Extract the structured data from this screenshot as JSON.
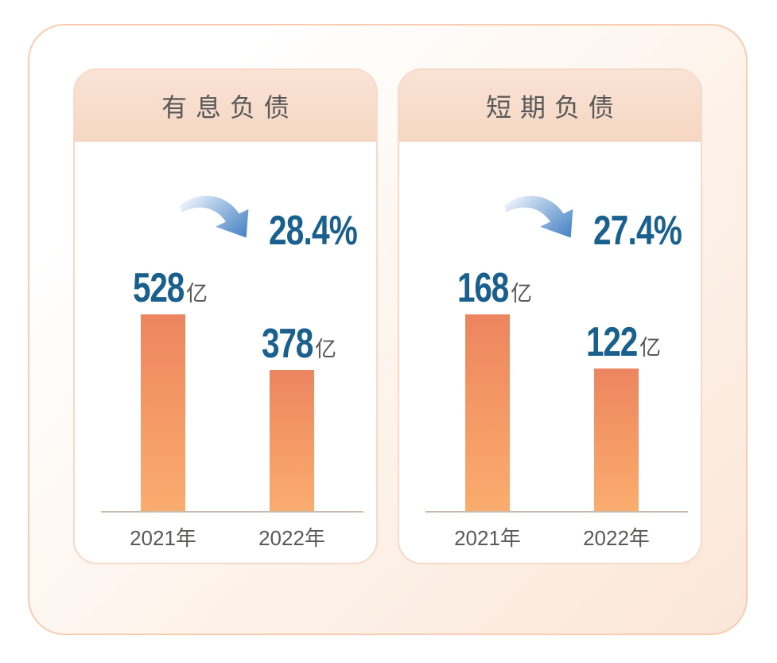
{
  "colors": {
    "accent_blue": "#19608E",
    "bar_gradient_top": "#EC8560",
    "bar_gradient_bottom": "#FAAC6E",
    "panel_header_fill": "#F6DBCA",
    "frame_border": "#F8CCB0",
    "text_gray": "#595757",
    "arrow_blue": "#4C86C6"
  },
  "chart_data": [
    {
      "type": "bar",
      "title": "有息负债",
      "categories": [
        "2021年",
        "2022年"
      ],
      "values": [
        528,
        378
      ],
      "unit": "亿",
      "change_label": "28.4%",
      "change_direction": "down",
      "ylabel": "",
      "xlabel": "",
      "legend": false,
      "grid": false
    },
    {
      "type": "bar",
      "title": "短期负债",
      "categories": [
        "2021年",
        "2022年"
      ],
      "values": [
        168,
        122
      ],
      "unit": "亿",
      "change_label": "27.4%",
      "change_direction": "down",
      "ylabel": "",
      "xlabel": "",
      "legend": false,
      "grid": false
    }
  ]
}
